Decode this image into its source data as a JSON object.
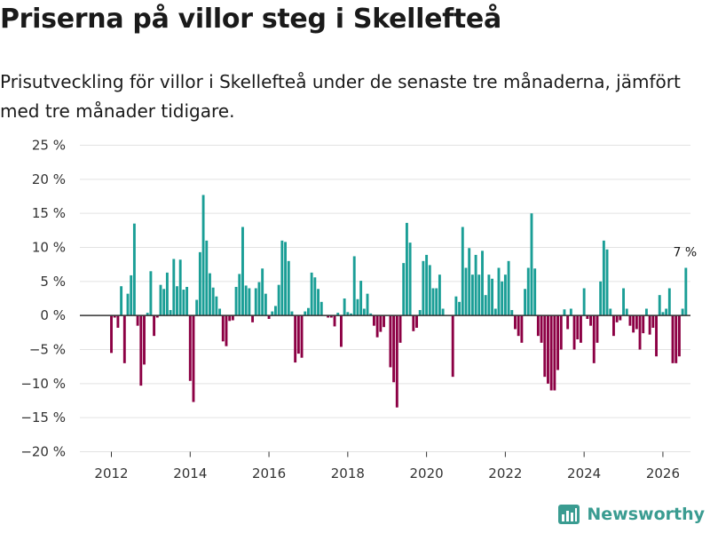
{
  "header": {
    "title": "Priserna på villor steg i Skellefteå",
    "subtitle": "Prisutveckling för villor i Skellefteå under de senaste tre månaderna, jämfört med tre månader tidigare."
  },
  "branding": {
    "name": "Newsworthy",
    "icon": "bar-chart-logo-icon"
  },
  "colors": {
    "positive": "#1a9e96",
    "negative": "#8c0044",
    "zero_line": "#333333",
    "grid": "#e2e2e2",
    "brand": "#3a9c91"
  },
  "chart_data": {
    "type": "bar",
    "title": "Priserna på villor steg i Skellefteå",
    "xlabel": "",
    "ylabel": "",
    "ylim": [
      -20,
      25
    ],
    "xlim": [
      2011.2,
      2026.7
    ],
    "y_ticks": [
      25,
      20,
      15,
      10,
      5,
      0,
      -5,
      -10,
      -15,
      -20
    ],
    "y_tick_labels": [
      "25 %",
      "20 %",
      "15 %",
      "10 %",
      "5 %",
      "0 %",
      "−5 %",
      "−10 %",
      "−15 %",
      "−20 %"
    ],
    "x_ticks": [
      2012,
      2014,
      2016,
      2018,
      2020,
      2022,
      2024,
      2026
    ],
    "x_tick_labels": [
      "2012",
      "2014",
      "2016",
      "2018",
      "2020",
      "2022",
      "2024",
      "2026"
    ],
    "grid": true,
    "annotation": {
      "label": "7 %",
      "attached_to": "last bar"
    },
    "series": [
      {
        "name": "Prisutveckling (%)",
        "start": "2012-01",
        "frequency": "monthly",
        "values": [
          -5.5,
          -0.3,
          -1.8,
          4.3,
          -7,
          3.2,
          5.9,
          13.5,
          -1.5,
          -10.3,
          -7.2,
          0.4,
          6.5,
          -3,
          -0.3,
          4.5,
          3.9,
          6.3,
          0.8,
          8.3,
          4.3,
          8.2,
          3.8,
          4.2,
          -9.6,
          -12.7,
          2.3,
          9.3,
          17.7,
          11,
          6.2,
          4.1,
          2.8,
          1,
          -3.8,
          -4.5,
          -0.8,
          -0.7,
          4.2,
          6.1,
          13,
          4.4,
          4,
          -1,
          4,
          4.9,
          6.9,
          3.2,
          -0.5,
          0.6,
          1.4,
          4.5,
          11,
          10.8,
          8,
          0.6,
          -6.9,
          -5.6,
          -6.2,
          0.6,
          1.1,
          6.3,
          5.6,
          3.9,
          2,
          0,
          -0.3,
          -0.3,
          -1.6,
          0.4,
          -4.6,
          2.5,
          0.5,
          0.3,
          8.7,
          2.4,
          5.1,
          1,
          3.2,
          0.3,
          -1.5,
          -3.2,
          -2.4,
          -1.7,
          0,
          -7.6,
          -9.8,
          -13.5,
          -4,
          7.7,
          13.6,
          10.7,
          -2.3,
          -1.8,
          0.8,
          8,
          8.9,
          7.4,
          4,
          4,
          6,
          1,
          0,
          0,
          -9,
          2.8,
          2,
          13,
          7,
          9.9,
          6,
          8.9,
          6,
          9.5,
          3,
          6,
          5.4,
          1,
          7,
          5,
          6,
          8,
          0.8,
          -2,
          -3,
          -4,
          3.9,
          7,
          15,
          6.9,
          -3,
          -4,
          -9,
          -10,
          -11,
          -11,
          -8,
          -5,
          0.9,
          -2,
          1,
          -5,
          -3.5,
          -4,
          4,
          -0.5,
          -1.5,
          -7,
          -4,
          5,
          11,
          9.7,
          1,
          -3,
          -1,
          -0.7,
          4,
          1,
          -1.5,
          -2.5,
          -2,
          -5,
          -2.6,
          1,
          -2.8,
          -1.8,
          -6,
          3,
          0.5,
          1,
          4,
          -7,
          -7,
          -6,
          1,
          7
        ]
      }
    ]
  }
}
